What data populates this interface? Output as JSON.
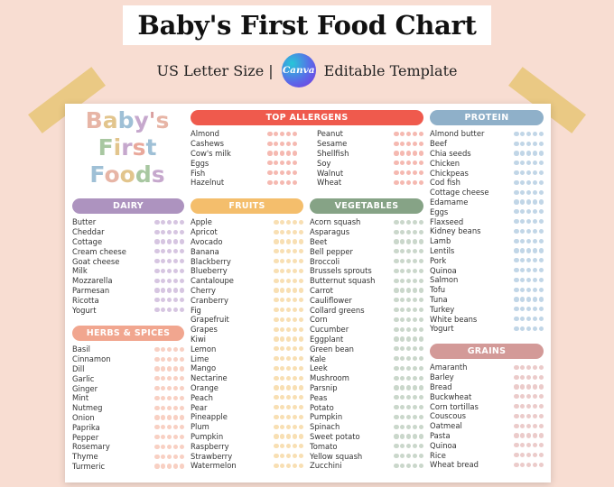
{
  "header": {
    "title": "Baby's First Food Chart",
    "subtitle_left": "US Letter Size |",
    "canva_badge": "Canva",
    "subtitle_right": "Editable Template"
  },
  "logo": {
    "lines": [
      {
        "letters": [
          "B",
          "a",
          "b",
          "y",
          "'",
          "s"
        ],
        "colors": [
          "#e7b5a6",
          "#e2c58d",
          "#9fc0d6",
          "#c6a8cd",
          "#d99f9f",
          "#e7b5a6"
        ]
      },
      {
        "letters": [
          "F",
          "i",
          "r",
          "s",
          "t"
        ],
        "colors": [
          "#a8c7a1",
          "#e2c58d",
          "#c6a8cd",
          "#e9a89b",
          "#9fc0d6"
        ]
      },
      {
        "letters": [
          "F",
          "o",
          "o",
          "d",
          "s"
        ],
        "colors": [
          "#9fc0d6",
          "#e7b5a6",
          "#e2c58d",
          "#a8c7a1",
          "#c6a8cd"
        ]
      }
    ]
  },
  "colors": {
    "top_allergens": "#ef5a4d",
    "protein": "#8fb0c9",
    "dairy": "#ad93bf",
    "fruits": "#f4be6c",
    "vegetables": "#86a386",
    "herbs": "#f1a68f",
    "grains": "#d39a98"
  },
  "sections": {
    "top_allergens": {
      "title": "TOP ALLERGENS",
      "dot_color": "#f5b9b1",
      "items_left": [
        "Almond",
        "Cashews",
        "Cow's milk",
        "Eggs",
        "Fish",
        "Hazelnut"
      ],
      "items_right": [
        "Peanut",
        "Sesame",
        "Shellfish",
        "Soy",
        "Walnut",
        "Wheat"
      ]
    },
    "protein": {
      "title": "PROTEIN",
      "dot_color": "#c1d6e7",
      "items": [
        "Almond butter",
        "Beef",
        "Chia seeds",
        "Chicken",
        "Chickpeas",
        "Cod fish",
        "Cottage cheese",
        "Edamame",
        "Eggs",
        "Flaxseed",
        "Kidney beans",
        "Lamb",
        "Lentils",
        "Pork",
        "Quinoa",
        "Salmon",
        "Tofu",
        "Tuna",
        "Turkey",
        "White beans",
        "Yogurt"
      ]
    },
    "dairy": {
      "title": "DAIRY",
      "dot_color": "#d6c5e1",
      "items": [
        "Butter",
        "Cheddar",
        "Cottage",
        "Cream cheese",
        "Goat cheese",
        "Milk",
        "Mozzarella",
        "Parmesan",
        "Ricotta",
        "Yogurt"
      ]
    },
    "fruits": {
      "title": "FRUITS",
      "dot_color": "#f8dfb3",
      "items": [
        "Apple",
        "Apricot",
        "Avocado",
        "Banana",
        "Blackberry",
        "Blueberry",
        "Cantaloupe",
        "Cherry",
        "Cranberry",
        "Fig",
        "Grapefruit",
        "Grapes",
        "Kiwi",
        "Lemon",
        "Lime",
        "Mango",
        "Nectarine",
        "Orange",
        "Peach",
        "Pear",
        "Pineapple",
        "Plum",
        "Pumpkin",
        "Raspberry",
        "Strawberry",
        "Watermelon"
      ]
    },
    "vegetables": {
      "title": "VEGETABLES",
      "dot_color": "#cad7cb",
      "items": [
        "Acorn squash",
        "Asparagus",
        "Beet",
        "Bell pepper",
        "Broccoli",
        "Brussels sprouts",
        "Butternut squash",
        "Carrot",
        "Cauliflower",
        "Collard greens",
        "Corn",
        "Cucumber",
        "Eggplant",
        "Green bean",
        "Kale",
        "Leek",
        "Mushroom",
        "Parsnip",
        "Peas",
        "Potato",
        "Pumpkin",
        "Spinach",
        "Sweet potato",
        "Tomato",
        "Yellow squash",
        "Zucchini"
      ]
    },
    "herbs": {
      "title": "HERBS & SPICES",
      "dot_color": "#f8d0c3",
      "items": [
        "Basil",
        "Cinnamon",
        "Dill",
        "Garlic",
        "Ginger",
        "Mint",
        "Nutmeg",
        "Onion",
        "Paprika",
        "Pepper",
        "Rosemary",
        "Thyme",
        "Turmeric"
      ]
    },
    "grains": {
      "title": "GRAINS",
      "dot_color": "#ebcbca",
      "items": [
        "Amaranth",
        "Barley",
        "Bread",
        "Buckwheat",
        "Corn tortillas",
        "Couscous",
        "Oatmeal",
        "Pasta",
        "Quinoa",
        "Rice",
        "Wheat bread"
      ]
    }
  }
}
